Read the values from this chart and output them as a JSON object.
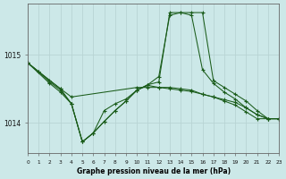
{
  "title": "Graphe pression niveau de la mer (hPa)",
  "background_color": "#cce8e8",
  "grid_color": "#b8d4d4",
  "line_color": "#1a5c1a",
  "xlim": [
    0,
    23
  ],
  "ylim": [
    1013.55,
    1015.75
  ],
  "yticks": [
    1014,
    1015
  ],
  "xticks": [
    0,
    1,
    2,
    3,
    4,
    5,
    6,
    7,
    8,
    9,
    10,
    11,
    12,
    13,
    14,
    15,
    16,
    17,
    18,
    19,
    20,
    21,
    22,
    23
  ],
  "series": [
    {
      "x": [
        0,
        1,
        2,
        3,
        4,
        10,
        11,
        12,
        13,
        14,
        15,
        16,
        17,
        18,
        19,
        20,
        21,
        22,
        23
      ],
      "y": [
        1014.88,
        1014.75,
        1014.62,
        1014.5,
        1014.38,
        1014.52,
        1014.52,
        1014.52,
        1014.5,
        1014.48,
        1014.46,
        1014.42,
        1014.38,
        1014.34,
        1014.3,
        1014.22,
        1014.12,
        1014.06,
        1014.06
      ]
    },
    {
      "x": [
        0,
        2,
        3,
        4,
        5,
        6,
        7,
        8,
        9,
        10,
        11,
        12,
        13,
        14,
        15,
        16,
        17,
        18,
        19,
        20,
        21,
        22,
        23
      ],
      "y": [
        1014.88,
        1014.58,
        1014.45,
        1014.28,
        1013.72,
        1013.85,
        1014.02,
        1014.18,
        1014.32,
        1014.48,
        1014.56,
        1014.6,
        1015.62,
        1015.62,
        1015.62,
        1015.62,
        1014.62,
        1014.52,
        1014.42,
        1014.32,
        1014.18,
        1014.06,
        1014.06
      ]
    },
    {
      "x": [
        0,
        3,
        4,
        5,
        6,
        7,
        8,
        9,
        10,
        11,
        12,
        13,
        14,
        15,
        16,
        17,
        18,
        19,
        20,
        21,
        22,
        23
      ],
      "y": [
        1014.88,
        1014.5,
        1014.28,
        1013.72,
        1013.85,
        1014.18,
        1014.28,
        1014.35,
        1014.48,
        1014.55,
        1014.52,
        1014.52,
        1014.5,
        1014.48,
        1014.42,
        1014.38,
        1014.32,
        1014.26,
        1014.16,
        1014.06,
        1014.06,
        1014.06
      ]
    },
    {
      "x": [
        0,
        1,
        2,
        3,
        4,
        5,
        6,
        7,
        8,
        9,
        10,
        11,
        12,
        13,
        14,
        15,
        16,
        17,
        18,
        19,
        20,
        21,
        22,
        23
      ],
      "y": [
        1014.88,
        1014.75,
        1014.6,
        1014.48,
        1014.28,
        1013.72,
        1013.85,
        1014.02,
        1014.18,
        1014.32,
        1014.48,
        1014.56,
        1014.68,
        1015.58,
        1015.62,
        1015.58,
        1014.78,
        1014.58,
        1014.45,
        1014.35,
        1014.22,
        1014.12,
        1014.06,
        1014.06
      ]
    }
  ]
}
